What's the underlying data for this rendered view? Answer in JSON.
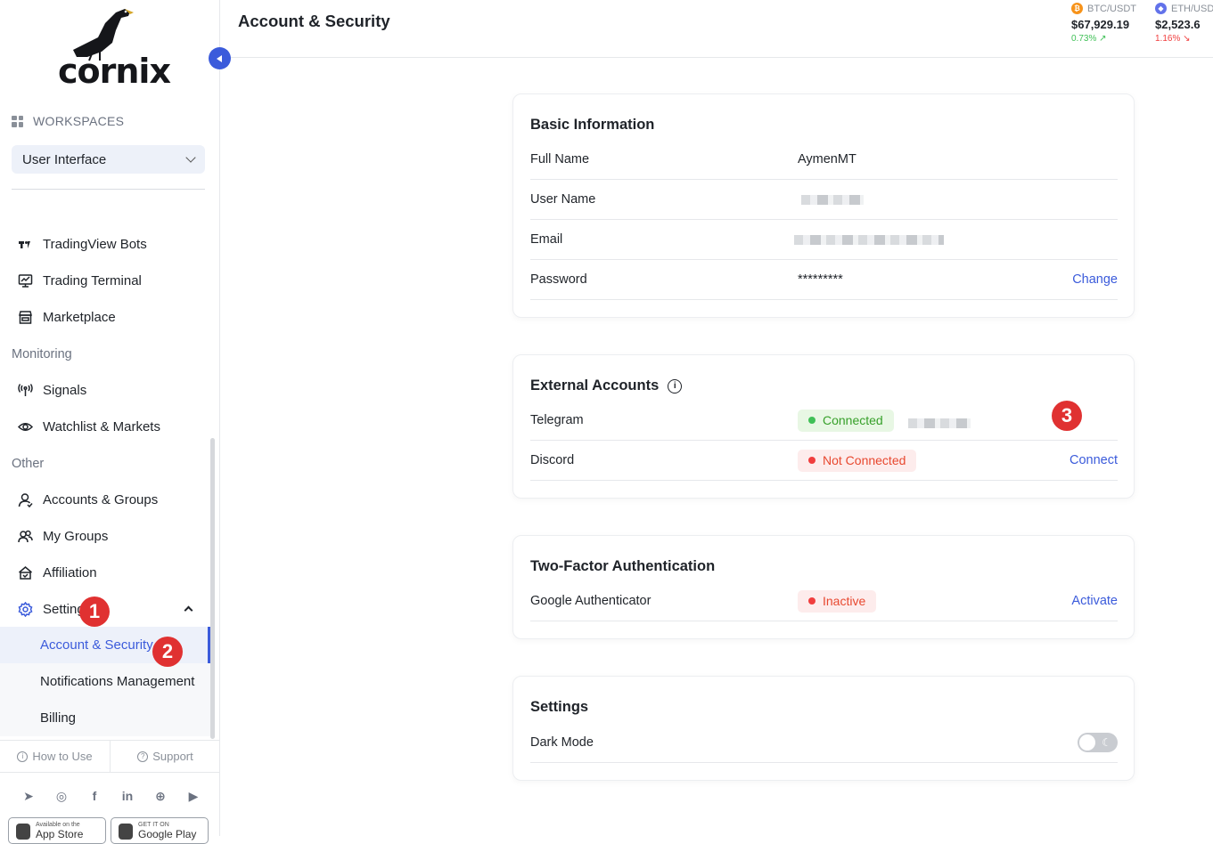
{
  "brand": {
    "name": "cornix"
  },
  "sidebar": {
    "workspaces_label": "WORKSPACES",
    "workspace_selected": "User Interface",
    "items": [
      {
        "label": "TradingView Bots",
        "icon": "tradingview-icon"
      },
      {
        "label": "Trading Terminal",
        "icon": "chart-monitor-icon"
      },
      {
        "label": "Marketplace",
        "icon": "store-icon"
      }
    ],
    "monitoring_label": "Monitoring",
    "monitoring_items": [
      {
        "label": "Signals",
        "icon": "antenna-icon"
      },
      {
        "label": "Watchlist & Markets",
        "icon": "eye-icon"
      }
    ],
    "other_label": "Other",
    "other_items": [
      {
        "label": "Accounts & Groups",
        "icon": "user-icon"
      },
      {
        "label": "My Groups",
        "icon": "users-icon"
      },
      {
        "label": "Affiliation",
        "icon": "handshake-icon"
      },
      {
        "label": "Settings",
        "icon": "gear-icon"
      }
    ],
    "settings_sub": [
      {
        "label": "Account & Security",
        "active": true
      },
      {
        "label": "Notifications Management",
        "active": false
      },
      {
        "label": "Billing",
        "active": false
      }
    ],
    "how_to_use": "How to Use",
    "support": "Support",
    "app_store_small": "Available on the",
    "app_store_big": "App Store",
    "google_play_small": "GET IT ON",
    "google_play_big": "Google Play"
  },
  "markers": [
    "1",
    "2",
    "3"
  ],
  "header": {
    "title": "Account & Security",
    "tickers": [
      {
        "pair": "BTC/USDT",
        "price": "$67,929.19",
        "change": "0.73% ↗",
        "direction": "up",
        "color": "#40c057"
      },
      {
        "pair": "ETH/USD",
        "price": "$2,523.6",
        "change": "1.16% ↘",
        "direction": "down",
        "color": "#f03e3e"
      }
    ]
  },
  "basic_info": {
    "title": "Basic Information",
    "full_name_label": "Full Name",
    "full_name": "AymenMT",
    "username_label": "User Name",
    "email_label": "Email",
    "password_label": "Password",
    "password": "*********",
    "change": "Change"
  },
  "external_accounts": {
    "title": "External Accounts",
    "telegram_label": "Telegram",
    "telegram_status": "Connected",
    "discord_label": "Discord",
    "discord_status": "Not Connected",
    "connect": "Connect"
  },
  "two_factor": {
    "title": "Two-Factor Authentication",
    "ga_label": "Google Authenticator",
    "ga_status": "Inactive",
    "activate": "Activate"
  },
  "settings": {
    "title": "Settings",
    "dark_mode_label": "Dark Mode",
    "dark_mode_on": false
  },
  "colors": {
    "accent": "#3b5bdb",
    "success": "#40c057",
    "danger": "#f03e3e",
    "marker": "#e03131"
  }
}
